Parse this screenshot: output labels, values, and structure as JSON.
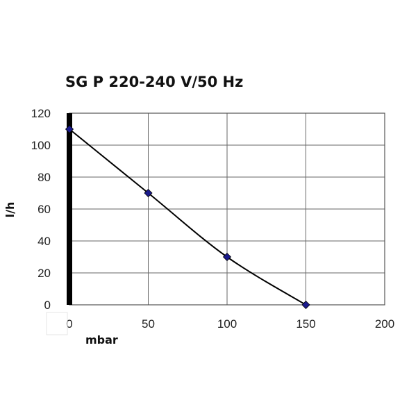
{
  "chart_data": {
    "type": "line",
    "title": "SG P 220-240 V/50 Hz",
    "xlabel": "mbar",
    "ylabel": "l/h",
    "xlim": [
      0,
      200
    ],
    "ylim": [
      0,
      120
    ],
    "x_ticks": [
      "0",
      "50",
      "100",
      "150",
      "200"
    ],
    "y_ticks": [
      "0",
      "20",
      "40",
      "60",
      "80",
      "100",
      "120"
    ],
    "grid": true,
    "legend": "none",
    "series": [
      {
        "x": [
          0,
          50,
          100,
          150
        ],
        "y": [
          110,
          70,
          30,
          0
        ],
        "color": "#000000",
        "marker": "diamond",
        "marker_color": "#1a1a8c"
      }
    ],
    "reference_line": {
      "x": 0,
      "color": "#000000"
    }
  }
}
